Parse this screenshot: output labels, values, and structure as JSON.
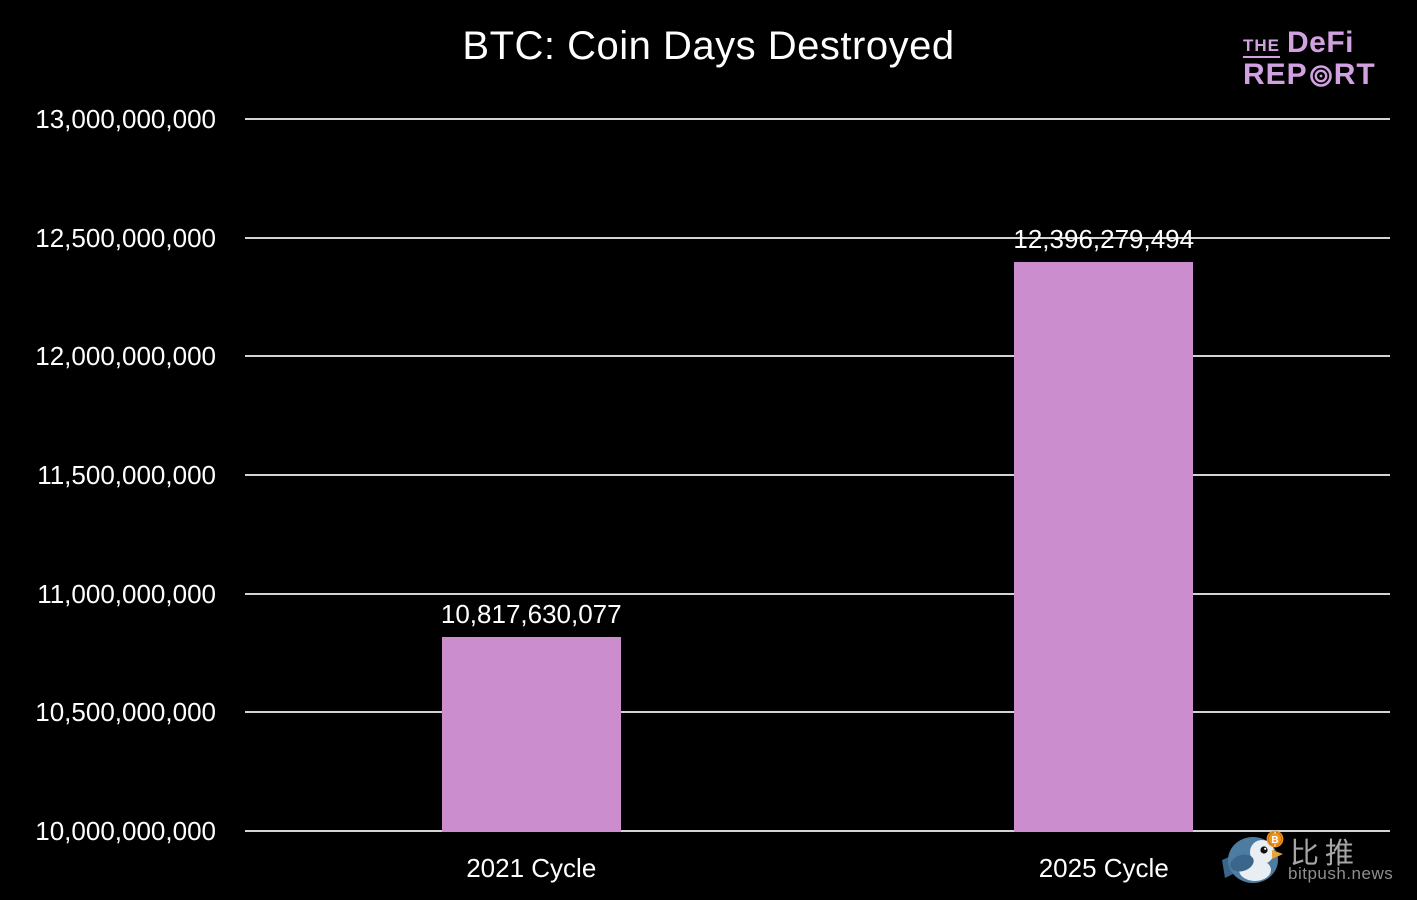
{
  "branding": {
    "the": "THE",
    "defi": "DeFi",
    "rep": "REP",
    "rt": "RT",
    "color": "#d2a1e0"
  },
  "watermark": {
    "cn": "比推",
    "domain": "bitpush.news"
  },
  "chart_data": {
    "type": "bar",
    "title": "BTC: Coin Days Destroyed",
    "categories": [
      "2021 Cycle",
      "2025 Cycle"
    ],
    "values": [
      10817630077,
      12396279494
    ],
    "value_labels": [
      "10,817,630,077",
      "12,396,279,494"
    ],
    "xlabel": "",
    "ylabel": "",
    "ylim": [
      10000000000,
      13000000000
    ],
    "yticks": [
      10000000000,
      10500000000,
      11000000000,
      11500000000,
      12000000000,
      12500000000,
      13000000000
    ],
    "ytick_labels": [
      "10,000,000,000",
      "10,500,000,000",
      "11,000,000,000",
      "11,500,000,000",
      "12,000,000,000",
      "12,500,000,000",
      "13,000,000,000"
    ],
    "grid": true,
    "legend_position": "none",
    "colors": {
      "background": "#000000",
      "bar": "#cb8dcd",
      "gridline": "#d3d3d3",
      "text": "#ffffff"
    }
  }
}
